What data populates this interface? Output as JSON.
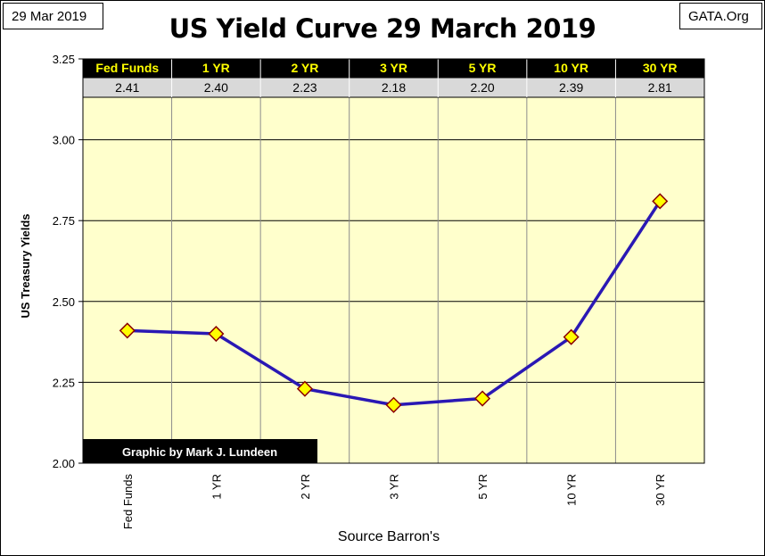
{
  "header": {
    "date": "29 Mar 2019",
    "title": "US Yield Curve 29 March 2019",
    "site": "GATA.Org"
  },
  "colors": {
    "plot_bg": "#ffffcc",
    "line": "#2a18b4",
    "marker_fill": "#ffff00",
    "marker_edge": "#8b0000",
    "header_bg": "#000000",
    "header_text": "#ffff00",
    "value_row_bg": "#d9d9d9"
  },
  "chart_data": {
    "type": "line",
    "title": "US Yield Curve 29 March 2019",
    "xlabel": "Source Barron's",
    "ylabel": "US Treasury Yields",
    "categories": [
      "Fed Funds",
      "1 YR",
      "2 YR",
      "3 YR",
      "5 YR",
      "10 YR",
      "30 YR"
    ],
    "series": [
      {
        "values": [
          2.41,
          2.4,
          2.23,
          2.18,
          2.2,
          2.39,
          2.81
        ]
      }
    ],
    "value_labels": [
      "2.41",
      "2.40",
      "2.23",
      "2.18",
      "2.20",
      "2.39",
      "2.81"
    ],
    "yticks": [
      "2.00",
      "2.25",
      "2.50",
      "2.75",
      "3.00",
      "3.25"
    ],
    "ylim": [
      2.0,
      3.25
    ],
    "grid": true,
    "table_header": [
      "Fed Funds",
      "1 YR",
      "2 YR",
      "3 YR",
      "5 YR",
      "10 YR",
      "30 YR"
    ],
    "credit": "Graphic by Mark J. Lundeen"
  }
}
